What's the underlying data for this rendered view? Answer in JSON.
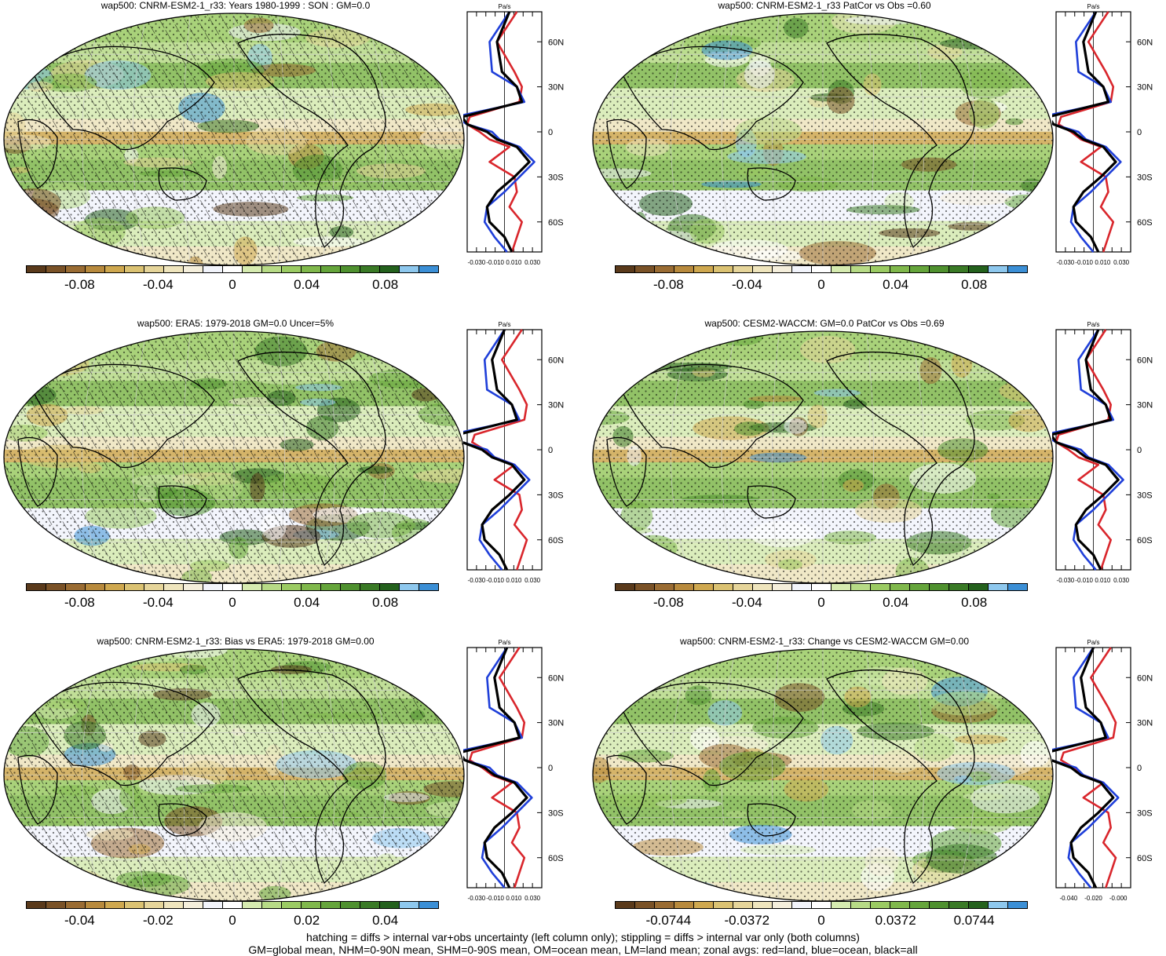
{
  "colors": {
    "scale": [
      "#5a3a1b",
      "#7a5227",
      "#9a6c33",
      "#b88a3d",
      "#cfa84f",
      "#dbc272",
      "#e6d59a",
      "#efe5bd",
      "#f5efdc",
      "#f2f4fb",
      "#ffffff",
      "#d6ebb0",
      "#b7db86",
      "#9bcb63",
      "#80b84c",
      "#65a53b",
      "#4f912f",
      "#3a7a26",
      "#24611d",
      "#8ec8ee",
      "#3b8fd6"
    ],
    "land_line": "#d9262c",
    "ocean_line": "#1f3fd9",
    "all_line": "#000000"
  },
  "panels": [
    {
      "title": "wap500: CNRM-ESM2-1_r33: Years 1980-1999 : SON : GM=0.0",
      "cbar_labels": [
        "-0.08",
        "-0.04",
        "0",
        "0.04",
        "0.08"
      ],
      "prof_ticks": [
        "-0.030",
        "-0.010",
        "0.010",
        "0.030"
      ],
      "hatched": true
    },
    {
      "title": "wap500: CNRM-ESM2-1_r33 PatCor vs Obs =0.60",
      "cbar_labels": [
        "-0.08",
        "-0.04",
        "0",
        "0.04",
        "0.08"
      ],
      "prof_ticks": [
        "-0.030",
        "-0.010",
        "0.010",
        "0.030"
      ],
      "hatched": false
    },
    {
      "title": "wap500: ERA5: 1979-2018 GM=0.0 Uncer=5%",
      "cbar_labels": [
        "-0.08",
        "-0.04",
        "0",
        "0.04",
        "0.08"
      ],
      "prof_ticks": [
        "-0.030",
        "-0.010",
        "0.010",
        "0.030"
      ],
      "hatched": true
    },
    {
      "title": "wap500: CESM2-WACCM: GM=0.0 PatCor vs Obs =0.69",
      "cbar_labels": [
        "-0.08",
        "-0.04",
        "0",
        "0.04",
        "0.08"
      ],
      "prof_ticks": [
        "-0.030",
        "-0.010",
        "0.010",
        "0.030"
      ],
      "hatched": false
    },
    {
      "title": "wap500: CNRM-ESM2-1_r33: Bias vs ERA5: 1979-2018  GM=0.00",
      "cbar_labels": [
        "-0.04",
        "-0.02",
        "0",
        "0.02",
        "0.04"
      ],
      "prof_ticks": [
        "-0.030",
        "-0.010",
        "0.010",
        "0.030"
      ],
      "hatched": true
    },
    {
      "title": "wap500: CNRM-ESM2-1_r33: Change vs CESM2-WACCM GM=0.00",
      "cbar_labels": [
        "-0.0744",
        "-0.0372",
        "0",
        "0.0372",
        "0.0744"
      ],
      "prof_ticks": [
        "-0.040",
        "-0.020",
        "-0.000"
      ],
      "hatched": false
    }
  ],
  "profile_unit": "Pa/s",
  "lat_labels": [
    "60N",
    "30N",
    "0",
    "30S",
    "60S"
  ],
  "chart_data": {
    "type": "line",
    "description_series": "zonal average wap500 profiles per panel",
    "y_lat": [
      80,
      60,
      40,
      30,
      20,
      10,
      5,
      0,
      -5,
      -10,
      -20,
      -30,
      -40,
      -50,
      -60,
      -70,
      -80
    ],
    "series": [
      {
        "name": "land",
        "values": [
          0.01,
          -0.006,
          0.008,
          0.014,
          0.012,
          -0.028,
          -0.03,
          -0.02,
          -0.012,
          0.004,
          -0.012,
          0.008,
          0.01,
          0.004,
          0.014,
          0.01,
          0.006
        ]
      },
      {
        "name": "ocean",
        "values": [
          0.004,
          -0.012,
          -0.01,
          0.01,
          0.016,
          -0.04,
          -0.03,
          -0.01,
          -0.004,
          0.012,
          0.024,
          0.012,
          0.0,
          -0.014,
          -0.016,
          -0.008,
          0.002
        ]
      },
      {
        "name": "all",
        "values": [
          0.004,
          -0.006,
          -0.002,
          0.01,
          0.014,
          -0.034,
          -0.03,
          -0.014,
          -0.006,
          0.01,
          0.02,
          0.008,
          -0.006,
          -0.014,
          -0.012,
          0.0,
          0.006
        ]
      }
    ],
    "ylim": [
      -80,
      80
    ],
    "xlim": [
      -0.03,
      0.03
    ]
  },
  "footer": {
    "line1": "hatching = diffs > internal var+obs uncertainty (left column only); stippling = diffs > internal var only (both columns)",
    "line2": "GM=global mean, NHM=0-90N mean, SHM=0-90S mean, OM=ocean mean, LM=land mean; zonal avgs: red=land, blue=ocean, black=all"
  }
}
